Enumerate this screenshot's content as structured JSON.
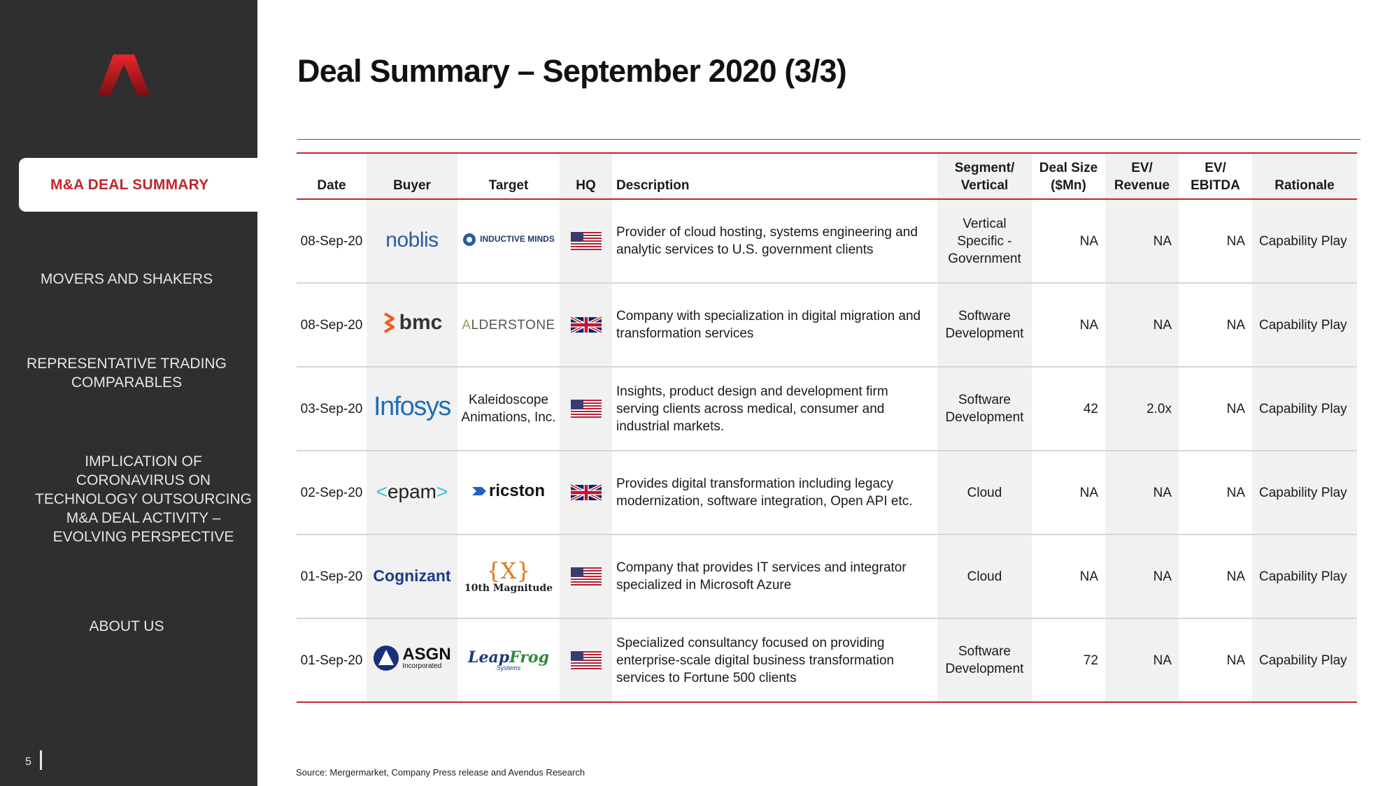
{
  "sidebar": {
    "active_item": "M&A DEAL SUMMARY",
    "items": [
      {
        "label": "MOVERS AND SHAKERS"
      },
      {
        "label_lines": [
          "REPRESENTATIVE TRADING",
          "COMPARABLES"
        ]
      },
      {
        "label_lines": [
          "IMPLICATION OF",
          "CORONAVIRUS ON",
          "TECHNOLOGY OUTSOURCING",
          "M&A DEAL ACTIVITY –",
          "EVOLVING PERSPECTIVE"
        ]
      },
      {
        "label": "ABOUT US"
      }
    ],
    "page_number": "5"
  },
  "title": "Deal Summary – September 2020 (3/3)",
  "table": {
    "headers": {
      "date": "Date",
      "buyer": "Buyer",
      "target": "Target",
      "hq": "HQ",
      "description": "Description",
      "segment_1": "Segment/",
      "segment_2": "Vertical",
      "deal_size_1": "Deal Size",
      "deal_size_2": "($Mn)",
      "ev_rev_1": "EV/",
      "ev_rev_2": "Revenue",
      "ev_ebitda_1": "EV/",
      "ev_ebitda_2": "EBITDA",
      "rationale": "Rationale"
    },
    "rows": [
      {
        "date": "08-Sep-20",
        "buyer": "noblis",
        "target": "INDUCTIVE MINDS",
        "hq": "us-flag",
        "description": "Provider of cloud hosting, systems engineering and analytic services to U.S. government clients",
        "segment": [
          "Vertical",
          "Specific -",
          "Government"
        ],
        "deal_size": "NA",
        "ev_revenue": "NA",
        "ev_ebitda": "NA",
        "rationale": "Capability Play"
      },
      {
        "date": "08-Sep-20",
        "buyer": "bmc",
        "target": "ALDERSTONE",
        "hq": "uk-flag",
        "description": "Company with specialization in digital migration and transformation services",
        "segment": [
          "Software",
          "Development"
        ],
        "deal_size": "NA",
        "ev_revenue": "NA",
        "ev_ebitda": "NA",
        "rationale": "Capability Play"
      },
      {
        "date": "03-Sep-20",
        "buyer": "Infosys",
        "target": "Kaleidoscope Animations, Inc.",
        "hq": "us-flag",
        "description": "Insights, product design and development firm serving clients across medical, consumer and industrial markets.",
        "segment": [
          "Software",
          "Development"
        ],
        "deal_size": "42",
        "ev_revenue": "2.0x",
        "ev_ebitda": "NA",
        "rationale": "Capability Play"
      },
      {
        "date": "02-Sep-20",
        "buyer": "<epam>",
        "target": "ricston",
        "hq": "uk-flag",
        "description": "Provides digital transformation including legacy modernization, software integration, Open API etc.",
        "segment": [
          "Cloud"
        ],
        "deal_size": "NA",
        "ev_revenue": "NA",
        "ev_ebitda": "NA",
        "rationale": "Capability Play"
      },
      {
        "date": "01-Sep-20",
        "buyer": "Cognizant",
        "target": "10th Magnitude",
        "hq": "us-flag",
        "description": "Company that provides IT services and integrator specialized in Microsoft Azure",
        "segment": [
          "Cloud"
        ],
        "deal_size": "NA",
        "ev_revenue": "NA",
        "ev_ebitda": "NA",
        "rationale": "Capability Play"
      },
      {
        "date": "01-Sep-20",
        "buyer": "ASGN Incorporated",
        "target": "LeapFrog Systems",
        "hq": "us-flag",
        "description": "Specialized consultancy focused on providing enterprise-scale digital business transformation services to Fortune 500 clients",
        "segment": [
          "Software",
          "Development"
        ],
        "deal_size": "72",
        "ev_revenue": "NA",
        "ev_ebitda": "NA",
        "rationale": "Capability Play"
      }
    ]
  },
  "source": "Source: Mergermarket, Company Press release and Avendus Research",
  "colors": {
    "accent": "#c0272d",
    "sidebar": "#2f2f2f",
    "shade": "#f1f1f1"
  }
}
